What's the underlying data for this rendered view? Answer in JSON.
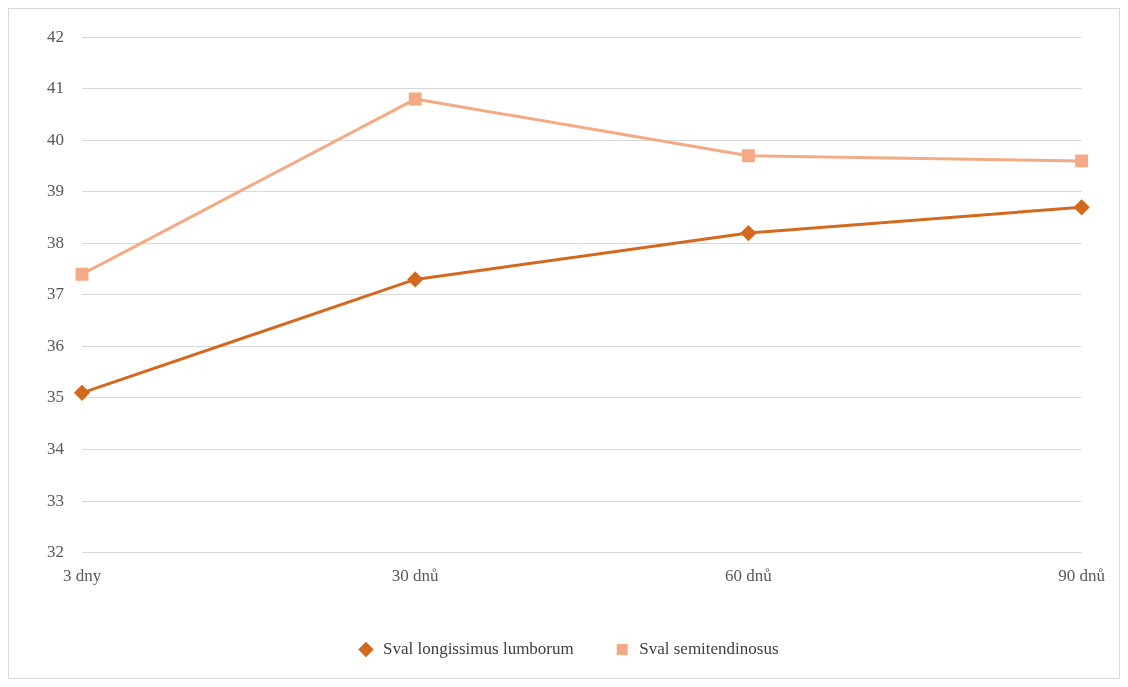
{
  "chart_data": {
    "type": "line",
    "categories": [
      "3 dny",
      "30 dnů",
      "60 dnů",
      "90 dnů"
    ],
    "series": [
      {
        "name": "Sval longissimus lumborum",
        "color": "#d2691e",
        "marker": "diamond",
        "values": [
          35.1,
          37.3,
          38.2,
          38.7
        ]
      },
      {
        "name": "Sval semitendinosus",
        "color": "#f4aa85",
        "marker": "square",
        "values": [
          37.4,
          40.8,
          39.7,
          39.6
        ]
      }
    ],
    "ylim": [
      32,
      42
    ],
    "yticks": [
      32,
      33,
      34,
      35,
      36,
      37,
      38,
      39,
      40,
      41,
      42
    ],
    "grid": "y",
    "legend": "bottom",
    "line_style": "solid"
  }
}
